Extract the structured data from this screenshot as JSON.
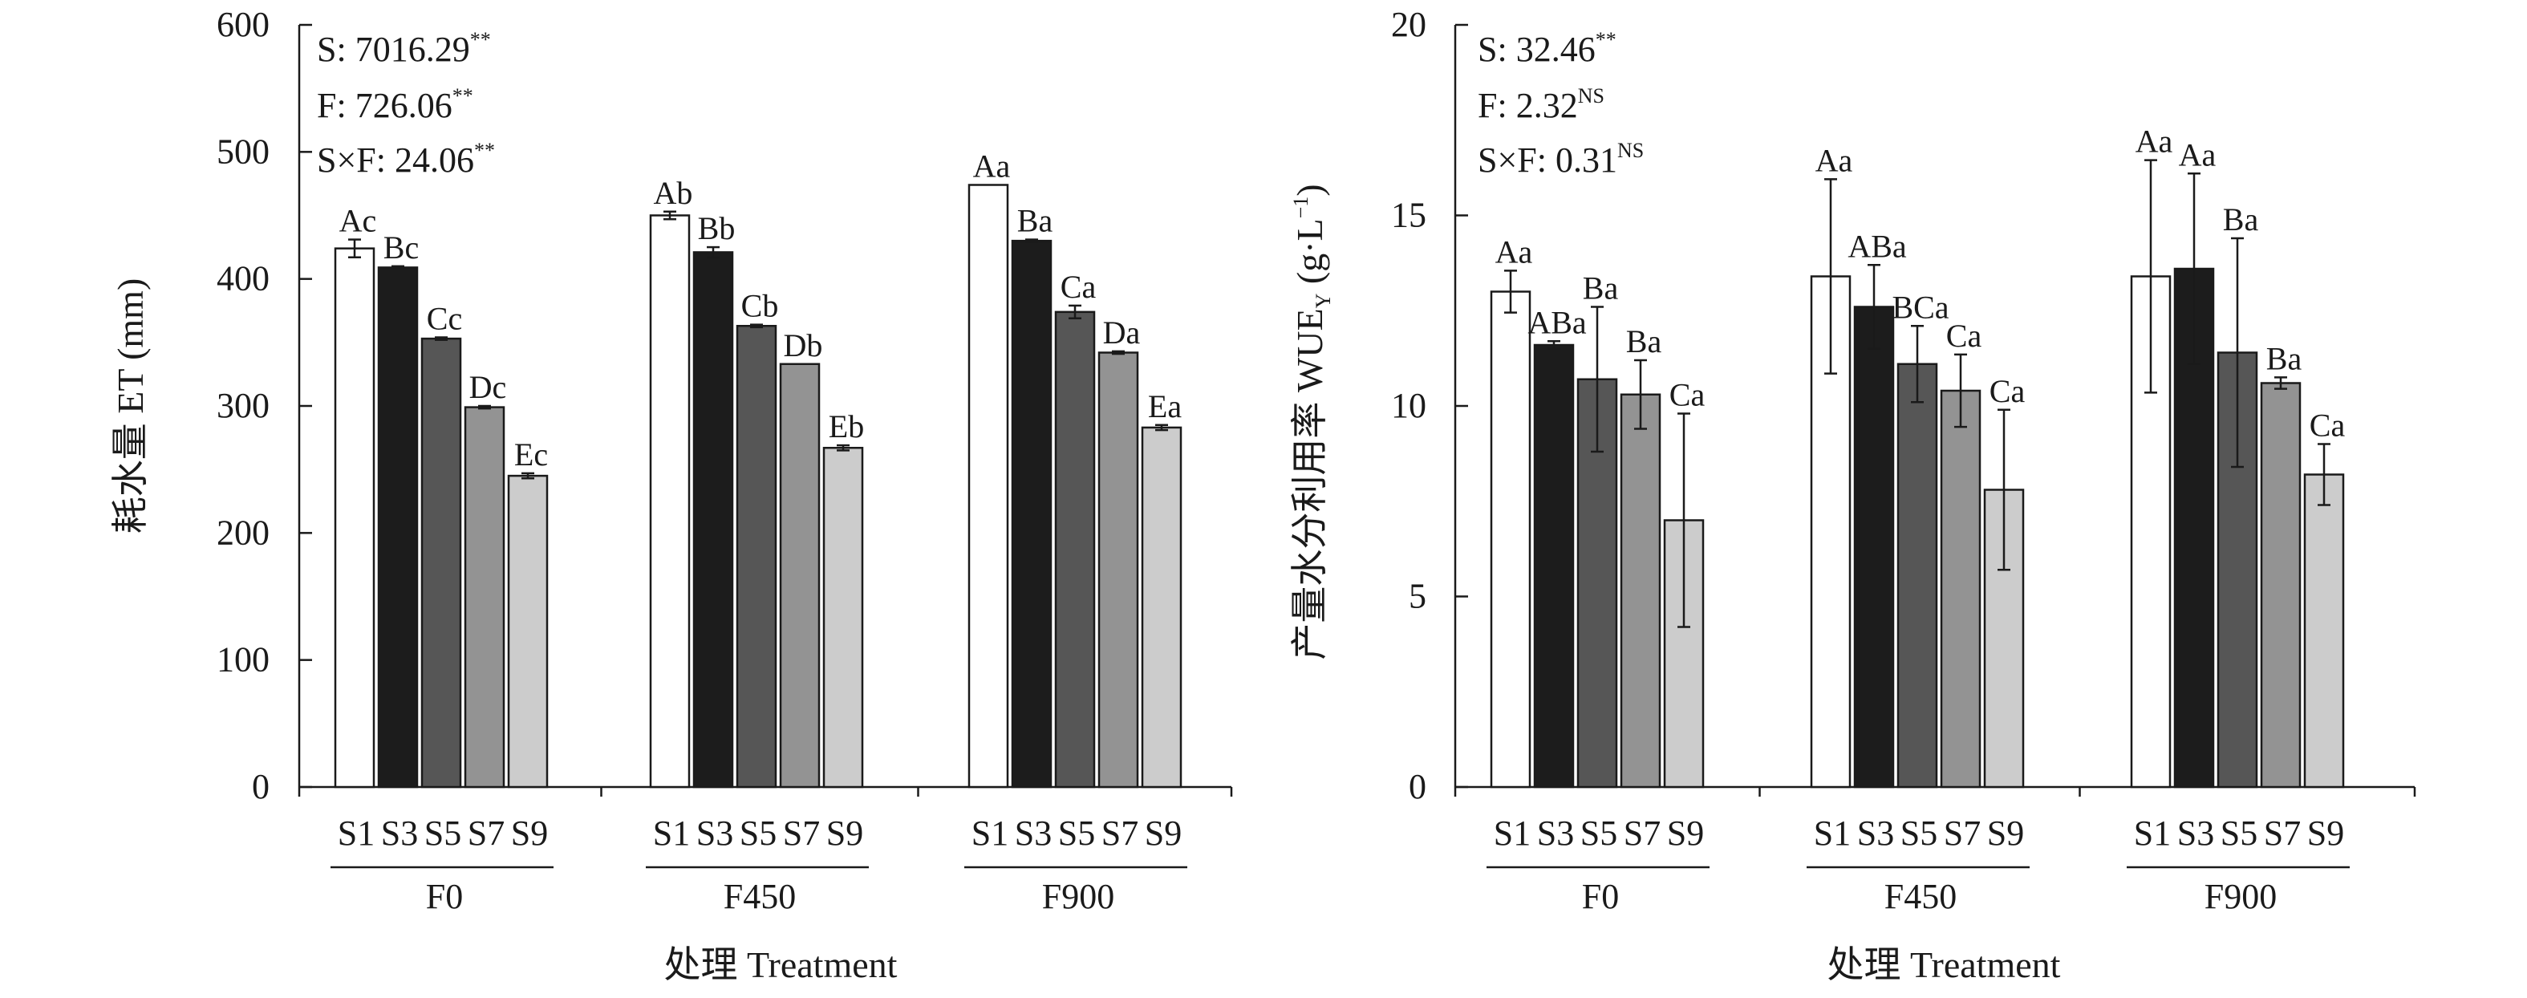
{
  "chart_data": [
    {
      "type": "bar",
      "ylabel": "耗水量 ET (mm)",
      "xlabel": "处理 Treatment",
      "ylim": [
        0,
        600
      ],
      "yticks": [
        0,
        100,
        200,
        300,
        400,
        500,
        600
      ],
      "groups": [
        "F0",
        "F450",
        "F900"
      ],
      "categories": [
        "S1",
        "S3",
        "S5",
        "S7",
        "S9"
      ],
      "stats": [
        {
          "label": "S: ",
          "value": "7016.29",
          "sup": "**"
        },
        {
          "label": "F: ",
          "value": "726.06",
          "sup": "**"
        },
        {
          "label": "S×F: ",
          "value": "24.06",
          "sup": "**"
        }
      ],
      "series": [
        {
          "group": "F0",
          "values": [
            424,
            409,
            353,
            299,
            245
          ],
          "errors": [
            7,
            1,
            1,
            1,
            2
          ],
          "letters": [
            "Ac",
            "Bc",
            "Cc",
            "Dc",
            "Ec"
          ]
        },
        {
          "group": "F450",
          "values": [
            450,
            421,
            363,
            333,
            267
          ],
          "errors": [
            3,
            4,
            1,
            0,
            2
          ],
          "letters": [
            "Ab",
            "Bb",
            "Cb",
            "Db",
            "Eb"
          ]
        },
        {
          "group": "F900",
          "values": [
            474,
            430,
            374,
            342,
            283
          ],
          "errors": [
            0,
            1,
            5,
            1,
            2
          ],
          "letters": [
            "Aa",
            "Ba",
            "Ca",
            "Da",
            "Ea"
          ]
        }
      ]
    },
    {
      "type": "bar",
      "ylabel_main": "产量水分利用率 WUE",
      "ylabel_sub": "Y",
      "ylabel_unit": " (g·L",
      "ylabel_sup": "−1",
      "ylabel_end": ")",
      "xlabel": "处理 Treatment",
      "ylim": [
        0,
        20
      ],
      "yticks": [
        0,
        5,
        10,
        15,
        20
      ],
      "groups": [
        "F0",
        "F450",
        "F900"
      ],
      "categories": [
        "S1",
        "S3",
        "S5",
        "S7",
        "S9"
      ],
      "stats": [
        {
          "label": "S: ",
          "value": "32.46",
          "sup": "**"
        },
        {
          "label": "F: ",
          "value": "2.32",
          "sup": "NS"
        },
        {
          "label": "S×F: ",
          "value": "0.31",
          "sup": "NS"
        }
      ],
      "series": [
        {
          "group": "F0",
          "values": [
            13.0,
            11.6,
            10.7,
            10.3,
            7.0
          ],
          "errors": [
            0.55,
            0.1,
            1.9,
            0.9,
            2.8
          ],
          "letters": [
            "Aa",
            "ABa",
            "Ba",
            "Ba",
            "Ca"
          ]
        },
        {
          "group": "F450",
          "values": [
            13.4,
            12.6,
            11.1,
            10.4,
            7.8
          ],
          "errors": [
            2.55,
            1.1,
            1.0,
            0.95,
            2.1
          ],
          "letters": [
            "Aa",
            "ABa",
            "BCa",
            "Ca",
            "Ca"
          ]
        },
        {
          "group": "F900",
          "values": [
            13.4,
            13.6,
            11.4,
            10.6,
            8.2
          ],
          "errors": [
            3.05,
            2.5,
            3.0,
            0.15,
            0.8
          ],
          "letters": [
            "Aa",
            "Aa",
            "Ba",
            "Ba",
            "Ca"
          ]
        }
      ]
    }
  ],
  "colors": {
    "S1": "#ffffff",
    "S3": "#1c1c1c",
    "S5": "#565656",
    "S7": "#939393",
    "S9": "#cccccc",
    "stroke": "#1a1a1a"
  }
}
